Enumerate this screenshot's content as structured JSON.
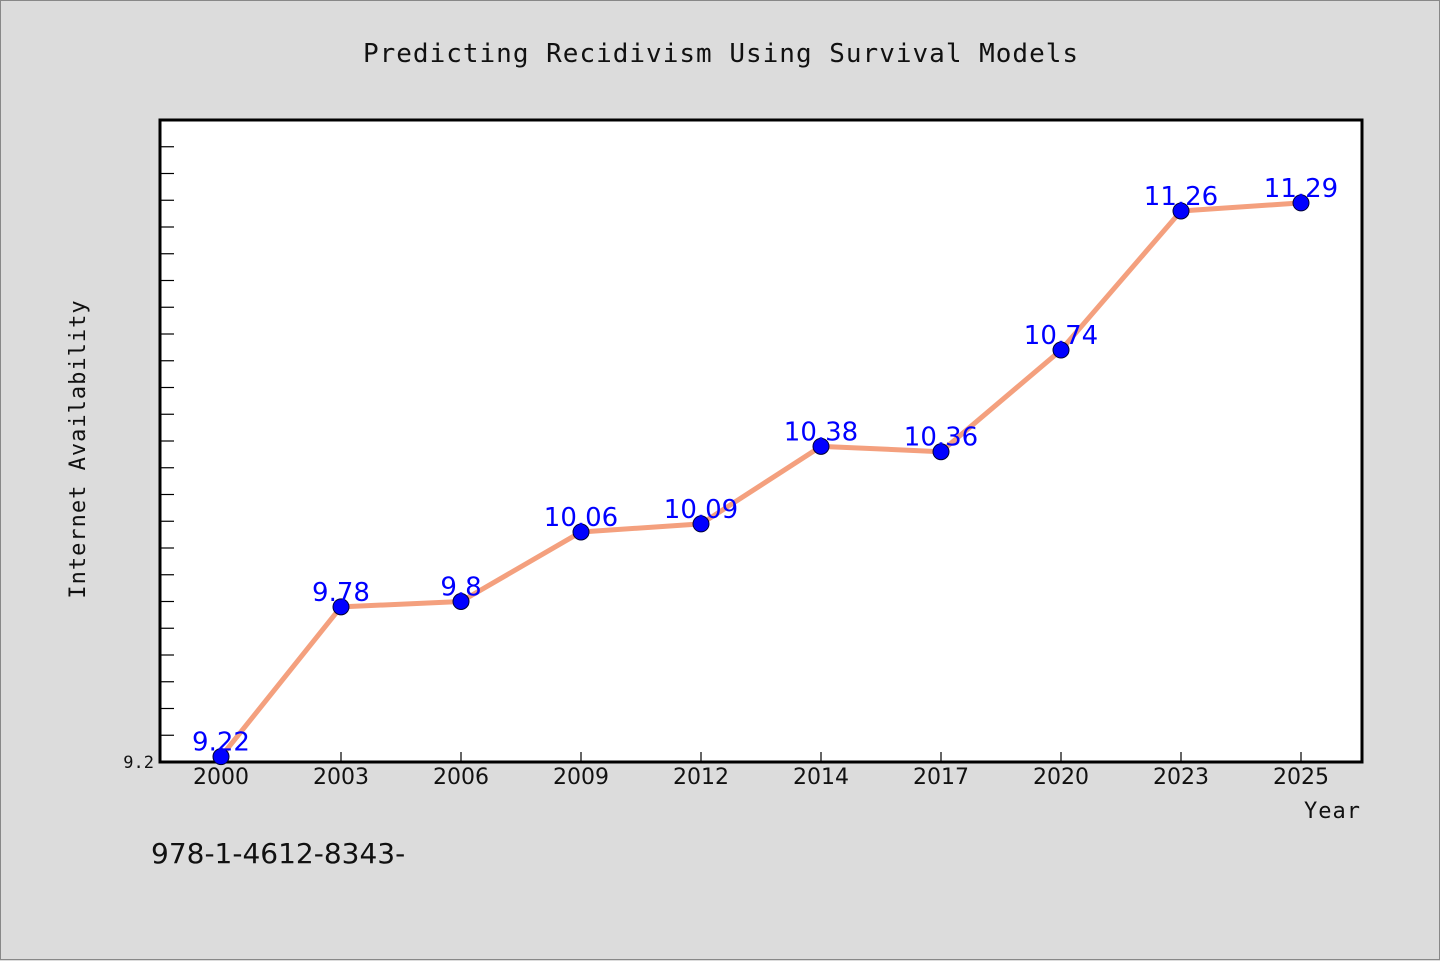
{
  "chart_data": {
    "type": "line",
    "title": "Predicting Recidivism Using Survival Models",
    "xlabel": "Year",
    "ylabel": "Internet Availability",
    "categories": [
      "2000",
      "2003",
      "2006",
      "2009",
      "2012",
      "2014",
      "2017",
      "2020",
      "2023",
      "2025"
    ],
    "series": [
      {
        "values": [
          9.22,
          9.78,
          9.8,
          10.06,
          10.09,
          10.38,
          10.36,
          10.74,
          11.26,
          11.29
        ],
        "labels": [
          "9.22",
          "9.78",
          "9.8",
          "10.06",
          "10.09",
          "10.38",
          "10.36",
          "10.74",
          "11.26",
          "11.29"
        ]
      }
    ],
    "ylim": [
      9.2,
      11.6
    ],
    "ytick_labels": [
      "9.2"
    ],
    "y_minor_step": 0.1,
    "grid": false,
    "colors": {
      "line": "#f4a07e",
      "marker": "#0000ff",
      "data_label": "#0000ff",
      "plot_background": "#ffffff",
      "page_background": "#dcdcdc"
    }
  },
  "footer": {
    "text": "978-1-4612-8343-"
  }
}
